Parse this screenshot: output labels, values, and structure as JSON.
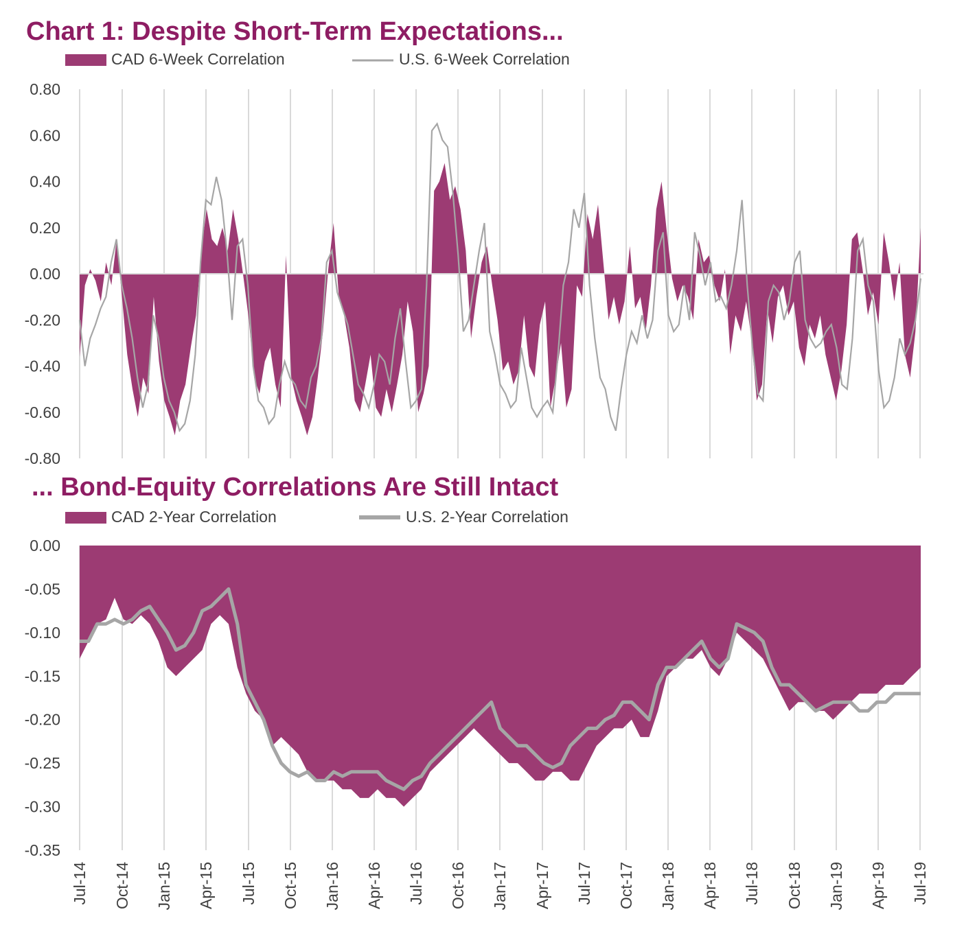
{
  "chart_data": [
    {
      "type": "area",
      "title": "Chart 1: Despite Short-Term Expectations...",
      "series": [
        {
          "name": "CAD 6-Week Correlation",
          "style": "filled-area",
          "color": "#9c3b73",
          "values": [
            -0.36,
            -0.05,
            0.02,
            -0.03,
            -0.12,
            0.05,
            -0.05,
            0.15,
            -0.1,
            -0.35,
            -0.5,
            -0.62,
            -0.45,
            -0.52,
            -0.1,
            -0.38,
            -0.55,
            -0.62,
            -0.7,
            -0.55,
            -0.48,
            -0.32,
            -0.18,
            0.1,
            0.28,
            0.15,
            0.12,
            0.2,
            0.1,
            0.28,
            0.15,
            -0.02,
            -0.2,
            -0.45,
            -0.52,
            -0.38,
            -0.32,
            -0.48,
            -0.58,
            0.08,
            -0.45,
            -0.55,
            -0.62,
            -0.7,
            -0.62,
            -0.45,
            -0.25,
            0.02,
            0.22,
            -0.1,
            -0.18,
            -0.32,
            -0.55,
            -0.6,
            -0.48,
            -0.35,
            -0.58,
            -0.62,
            -0.5,
            -0.6,
            -0.48,
            -0.35,
            -0.12,
            -0.25,
            -0.6,
            -0.52,
            -0.4,
            0.36,
            0.4,
            0.48,
            0.32,
            0.38,
            0.28,
            0.1,
            -0.28,
            -0.1,
            0.05,
            0.12,
            -0.05,
            -0.2,
            -0.42,
            -0.38,
            -0.48,
            -0.42,
            -0.18,
            -0.4,
            -0.45,
            -0.22,
            -0.12,
            -0.58,
            -0.45,
            -0.3,
            -0.58,
            -0.5,
            -0.05,
            -0.1,
            0.26,
            0.15,
            0.3,
            0.05,
            -0.2,
            -0.1,
            -0.22,
            -0.12,
            0.12,
            -0.15,
            -0.1,
            -0.25,
            -0.05,
            0.28,
            0.4,
            0.18,
            -0.02,
            -0.12,
            -0.05,
            -0.1,
            -0.2,
            0.15,
            0.05,
            0.08,
            -0.05,
            -0.12,
            0.02,
            -0.35,
            -0.18,
            -0.25,
            -0.12,
            -0.28,
            -0.55,
            -0.48,
            -0.15,
            -0.3,
            -0.1,
            -0.05,
            -0.18,
            -0.12,
            -0.32,
            -0.4,
            -0.22,
            -0.28,
            -0.18,
            -0.35,
            -0.45,
            -0.55,
            -0.42,
            -0.22,
            0.15,
            0.18,
            0.02,
            -0.18,
            -0.08,
            -0.22,
            0.18,
            0.05,
            -0.12,
            0.05,
            -0.35,
            -0.45,
            -0.25,
            0.2
          ]
        },
        {
          "name": "U.S. 6-Week Correlation",
          "style": "line",
          "color": "#a6a6a6",
          "values": [
            -0.2,
            -0.4,
            -0.28,
            -0.22,
            -0.15,
            -0.1,
            0.05,
            0.15,
            -0.05,
            -0.15,
            -0.28,
            -0.45,
            -0.58,
            -0.48,
            -0.18,
            -0.28,
            -0.45,
            -0.55,
            -0.6,
            -0.68,
            -0.65,
            -0.55,
            -0.35,
            0.05,
            0.32,
            0.3,
            0.42,
            0.32,
            0.1,
            -0.2,
            0.12,
            0.15,
            -0.05,
            -0.4,
            -0.55,
            -0.58,
            -0.65,
            -0.62,
            -0.48,
            -0.38,
            -0.45,
            -0.48,
            -0.55,
            -0.58,
            -0.45,
            -0.4,
            -0.28,
            0.05,
            0.1,
            -0.08,
            -0.15,
            -0.22,
            -0.35,
            -0.48,
            -0.52,
            -0.58,
            -0.48,
            -0.35,
            -0.38,
            -0.48,
            -0.28,
            -0.15,
            -0.38,
            -0.58,
            -0.55,
            -0.5,
            -0.05,
            0.62,
            0.65,
            0.58,
            0.55,
            0.35,
            0.08,
            -0.25,
            -0.2,
            -0.05,
            0.1,
            0.22,
            -0.25,
            -0.35,
            -0.48,
            -0.52,
            -0.58,
            -0.55,
            -0.32,
            -0.45,
            -0.58,
            -0.62,
            -0.58,
            -0.55,
            -0.6,
            -0.35,
            -0.05,
            0.05,
            0.28,
            0.2,
            0.35,
            -0.05,
            -0.28,
            -0.45,
            -0.5,
            -0.62,
            -0.68,
            -0.5,
            -0.35,
            -0.25,
            -0.3,
            -0.18,
            -0.28,
            -0.2,
            0.1,
            0.18,
            -0.18,
            -0.25,
            -0.22,
            -0.05,
            -0.2,
            0.18,
            0.08,
            -0.05,
            0.05,
            -0.12,
            -0.1,
            -0.15,
            -0.05,
            0.1,
            0.32,
            -0.05,
            -0.32,
            -0.52,
            -0.55,
            -0.12,
            -0.05,
            -0.08,
            -0.2,
            -0.12,
            0.05,
            0.1,
            -0.2,
            -0.28,
            -0.32,
            -0.3,
            -0.25,
            -0.22,
            -0.32,
            -0.48,
            -0.5,
            -0.28,
            0.1,
            0.15,
            -0.05,
            -0.12,
            -0.42,
            -0.58,
            -0.55,
            -0.45,
            -0.28,
            -0.35,
            -0.3,
            -0.2,
            -0.02
          ]
        }
      ],
      "xlabel": "",
      "ylabel": "",
      "yticks": [
        "0.80",
        "0.60",
        "0.40",
        "0.20",
        "0.00",
        "-0.20",
        "-0.40",
        "-0.60",
        "-0.80"
      ],
      "ylim": [
        -0.8,
        0.8
      ],
      "legend": "top-left"
    },
    {
      "type": "area",
      "title": "... Bond-Equity Correlations Are Still Intact",
      "series": [
        {
          "name": "CAD 2-Year Correlation",
          "style": "filled-area",
          "color": "#9c3b73",
          "values": [
            -0.13,
            -0.11,
            -0.09,
            -0.085,
            -0.06,
            -0.085,
            -0.09,
            -0.08,
            -0.09,
            -0.11,
            -0.14,
            -0.15,
            -0.14,
            -0.13,
            -0.12,
            -0.09,
            -0.08,
            -0.09,
            -0.14,
            -0.17,
            -0.19,
            -0.2,
            -0.23,
            -0.22,
            -0.23,
            -0.24,
            -0.26,
            -0.27,
            -0.27,
            -0.27,
            -0.28,
            -0.28,
            -0.29,
            -0.29,
            -0.28,
            -0.29,
            -0.29,
            -0.3,
            -0.29,
            -0.28,
            -0.26,
            -0.25,
            -0.24,
            -0.23,
            -0.22,
            -0.21,
            -0.22,
            -0.23,
            -0.24,
            -0.25,
            -0.25,
            -0.26,
            -0.27,
            -0.27,
            -0.26,
            -0.26,
            -0.27,
            -0.27,
            -0.25,
            -0.23,
            -0.22,
            -0.21,
            -0.21,
            -0.2,
            -0.22,
            -0.22,
            -0.19,
            -0.15,
            -0.14,
            -0.13,
            -0.13,
            -0.12,
            -0.14,
            -0.15,
            -0.13,
            -0.1,
            -0.11,
            -0.12,
            -0.13,
            -0.15,
            -0.17,
            -0.19,
            -0.18,
            -0.18,
            -0.19,
            -0.19,
            -0.2,
            -0.19,
            -0.18,
            -0.17,
            -0.17,
            -0.17,
            -0.16,
            -0.16,
            -0.16,
            -0.15,
            -0.14
          ]
        },
        {
          "name": "U.S. 2-Year Correlation",
          "style": "thick-line",
          "color": "#a6a6a6",
          "values": [
            -0.11,
            -0.11,
            -0.09,
            -0.09,
            -0.085,
            -0.09,
            -0.085,
            -0.075,
            -0.07,
            -0.085,
            -0.1,
            -0.12,
            -0.115,
            -0.1,
            -0.075,
            -0.07,
            -0.06,
            -0.05,
            -0.09,
            -0.16,
            -0.18,
            -0.2,
            -0.23,
            -0.25,
            -0.26,
            -0.265,
            -0.26,
            -0.27,
            -0.27,
            -0.26,
            -0.265,
            -0.26,
            -0.26,
            -0.26,
            -0.26,
            -0.27,
            -0.275,
            -0.28,
            -0.27,
            -0.265,
            -0.25,
            -0.24,
            -0.23,
            -0.22,
            -0.21,
            -0.2,
            -0.19,
            -0.18,
            -0.21,
            -0.22,
            -0.23,
            -0.23,
            -0.24,
            -0.25,
            -0.255,
            -0.25,
            -0.23,
            -0.22,
            -0.21,
            -0.21,
            -0.2,
            -0.195,
            -0.18,
            -0.18,
            -0.19,
            -0.2,
            -0.16,
            -0.14,
            -0.14,
            -0.13,
            -0.12,
            -0.11,
            -0.13,
            -0.14,
            -0.13,
            -0.09,
            -0.095,
            -0.1,
            -0.11,
            -0.14,
            -0.16,
            -0.16,
            -0.17,
            -0.18,
            -0.19,
            -0.185,
            -0.18,
            -0.18,
            -0.18,
            -0.19,
            -0.19,
            -0.18,
            -0.18,
            -0.17,
            -0.17,
            -0.17,
            -0.17
          ]
        }
      ],
      "xlabel": "",
      "ylabel": "",
      "yticks": [
        "0.00",
        "-0.05",
        "-0.10",
        "-0.15",
        "-0.20",
        "-0.25",
        "-0.30",
        "-0.35"
      ],
      "ylim": [
        -0.35,
        0.0
      ],
      "xticks": [
        "Jul-14",
        "Oct-14",
        "Jan-15",
        "Apr-15",
        "Jul-15",
        "Oct-15",
        "Jan-16",
        "Apr-16",
        "Jul-16",
        "Oct-16",
        "Jan-17",
        "Apr-17",
        "Jul-17",
        "Oct-17",
        "Jan-18",
        "Apr-18",
        "Jul-18",
        "Oct-18",
        "Jan-19",
        "Apr-19",
        "Jul-19"
      ],
      "legend": "top-left"
    }
  ]
}
